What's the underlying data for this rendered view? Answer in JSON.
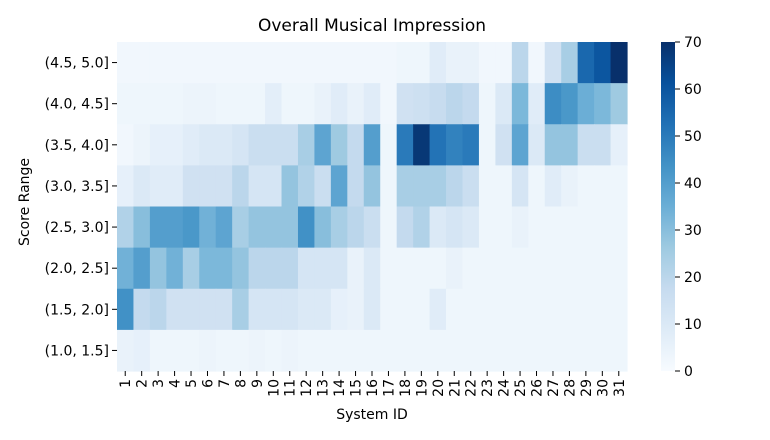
{
  "chart_data": {
    "type": "heatmap",
    "title": "Overall Musical Impression",
    "xlabel": "System ID",
    "ylabel": "Score Range",
    "x_categories": [
      "1",
      "2",
      "3",
      "4",
      "5",
      "6",
      "7",
      "8",
      "9",
      "10",
      "11",
      "12",
      "13",
      "14",
      "15",
      "16",
      "17",
      "18",
      "19",
      "20",
      "21",
      "22",
      "23",
      "24",
      "25",
      "26",
      "27",
      "28",
      "29",
      "30",
      "31"
    ],
    "y_categories": [
      "(4.5, 5.0]",
      "(4.0, 4.5]",
      "(3.5, 4.0]",
      "(3.0, 3.5]",
      "(2.5, 3.0]",
      "(2.0, 2.5]",
      "(1.5, 2.0]",
      "(1.0, 1.5]"
    ],
    "colorbar": {
      "min": 0,
      "max": 70,
      "ticks": [
        0,
        10,
        20,
        30,
        40,
        50,
        60,
        70
      ]
    },
    "colormap": [
      "#f7fbff",
      "#deebf7",
      "#c6dbef",
      "#9ecae1",
      "#6baed6",
      "#4292c6",
      "#2171b5",
      "#08519c",
      "#08306b"
    ],
    "grid": false,
    "values": [
      [
        2,
        2,
        2,
        2,
        2,
        2,
        2,
        2,
        2,
        2,
        2,
        2,
        2,
        2,
        2,
        2,
        2,
        3,
        3,
        8,
        5,
        5,
        2,
        2,
        20,
        2,
        14,
        24,
        55,
        60,
        70
      ],
      [
        3,
        3,
        3,
        3,
        4,
        4,
        3,
        3,
        3,
        7,
        3,
        3,
        5,
        8,
        5,
        8,
        2,
        14,
        15,
        17,
        20,
        18,
        3,
        10,
        32,
        8,
        45,
        42,
        35,
        32,
        26
      ],
      [
        2,
        4,
        6,
        6,
        8,
        10,
        10,
        12,
        16,
        16,
        16,
        24,
        38,
        26,
        18,
        40,
        3,
        50,
        68,
        52,
        48,
        50,
        3,
        14,
        38,
        10,
        28,
        28,
        16,
        16,
        6
      ],
      [
        6,
        10,
        8,
        8,
        14,
        14,
        14,
        20,
        12,
        12,
        28,
        22,
        16,
        38,
        18,
        28,
        3,
        24,
        24,
        24,
        20,
        16,
        3,
        3,
        12,
        3,
        8,
        5,
        3,
        3,
        3
      ],
      [
        22,
        30,
        40,
        40,
        42,
        34,
        38,
        24,
        28,
        28,
        28,
        44,
        30,
        24,
        20,
        16,
        3,
        18,
        22,
        10,
        12,
        10,
        3,
        3,
        5,
        3,
        3,
        3,
        3,
        3,
        3
      ],
      [
        34,
        40,
        28,
        34,
        24,
        32,
        32,
        28,
        20,
        20,
        20,
        12,
        12,
        12,
        5,
        10,
        3,
        3,
        3,
        3,
        5,
        3,
        3,
        3,
        3,
        3,
        3,
        3,
        3,
        3,
        3
      ],
      [
        44,
        18,
        20,
        14,
        14,
        14,
        14,
        24,
        12,
        12,
        12,
        10,
        10,
        6,
        5,
        10,
        3,
        3,
        3,
        8,
        3,
        3,
        3,
        3,
        3,
        3,
        3,
        3,
        3,
        3,
        3
      ],
      [
        5,
        6,
        3,
        3,
        3,
        4,
        3,
        3,
        4,
        3,
        4,
        3,
        3,
        3,
        3,
        3,
        3,
        3,
        3,
        3,
        3,
        3,
        3,
        3,
        3,
        3,
        3,
        3,
        3,
        3,
        3
      ]
    ]
  }
}
